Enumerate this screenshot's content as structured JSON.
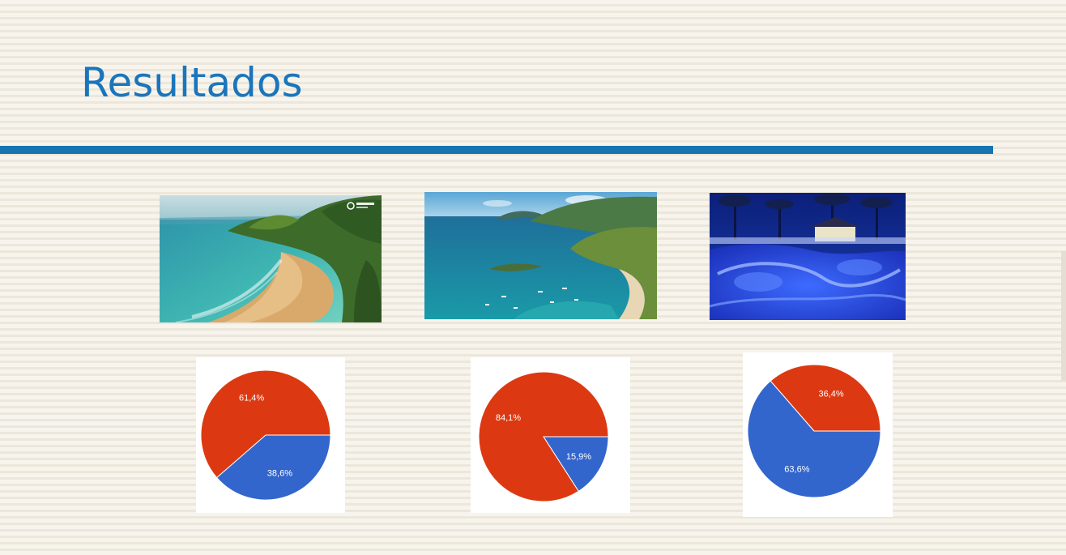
{
  "slide": {
    "title": "Resultados"
  },
  "colors": {
    "title": "#1a75bc",
    "rule": "#1675b0",
    "slice_red": "#dc3912",
    "slice_blue": "#3366cc"
  },
  "photos": [
    {
      "subject": "tropical beach with cliff and turquoise sea",
      "logo_text": "BonTour"
    },
    {
      "subject": "aerial view of bay with green mountains and boats"
    },
    {
      "subject": "resort swimming pool lit in blue at night with palm trees"
    }
  ],
  "chart_data": [
    {
      "type": "pie",
      "slices": [
        {
          "value": 61.4,
          "label": "61,4%",
          "color": "#dc3912"
        },
        {
          "value": 38.6,
          "label": "38,6%",
          "color": "#3366cc"
        }
      ]
    },
    {
      "type": "pie",
      "slices": [
        {
          "value": 84.1,
          "label": "84,1%",
          "color": "#dc3912"
        },
        {
          "value": 15.9,
          "label": "15,9%",
          "color": "#3366cc"
        }
      ]
    },
    {
      "type": "pie",
      "slices": [
        {
          "value": 36.4,
          "label": "36,4%",
          "color": "#dc3912"
        },
        {
          "value": 63.6,
          "label": "63,6%",
          "color": "#3366cc"
        }
      ]
    }
  ]
}
